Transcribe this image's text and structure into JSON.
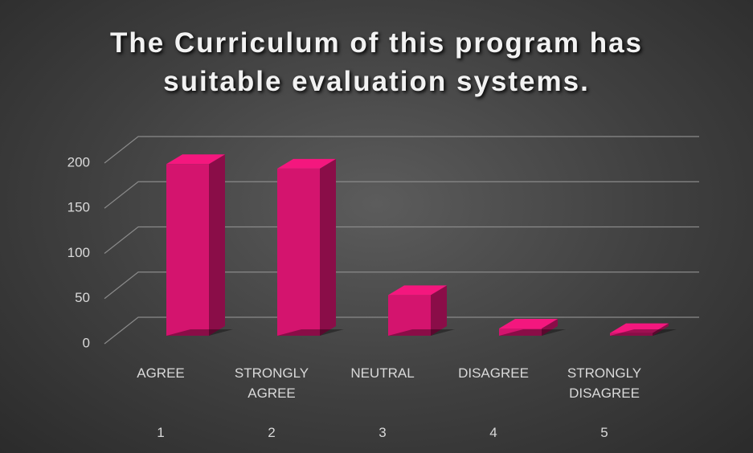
{
  "chart_data": {
    "type": "bar3d",
    "title": "The Curriculum of this program has suitable evaluation systems.",
    "categories": [
      "AGREE",
      "STRONGLY AGREE",
      "NEUTRAL",
      "DISAGREE",
      "STRONGLY DISAGREE"
    ],
    "category_numbers": [
      1,
      2,
      3,
      4,
      5
    ],
    "values": [
      190,
      185,
      45,
      8,
      3
    ],
    "color": "#d4146e",
    "ylim": [
      0,
      200
    ],
    "yticks": [
      0,
      50,
      100,
      150,
      200
    ],
    "grid": true
  }
}
